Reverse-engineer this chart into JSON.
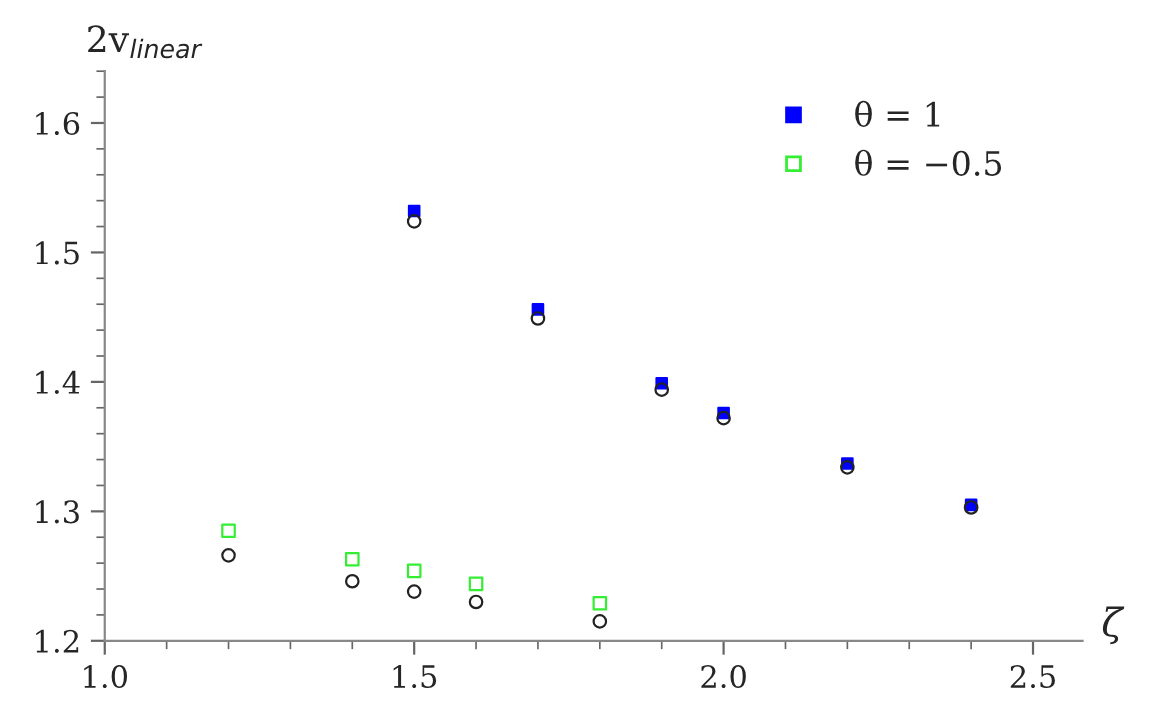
{
  "chart_data": {
    "type": "scatter",
    "xlabel": "ζ",
    "ylabel": "2v$_{linear}$",
    "xlim": [
      1.0,
      2.58
    ],
    "ylim": [
      1.2,
      1.64
    ],
    "xticks": [
      {
        "value": 1.0,
        "label": "1.0"
      },
      1.5,
      {
        "value": 2.0,
        "label": "2.0"
      },
      2.5
    ],
    "yticks": [
      1.2,
      1.3,
      1.4,
      1.5,
      1.6
    ],
    "grid": false,
    "legend": "top right",
    "series": [
      {
        "name": "θ = 1",
        "color": "#0000ff",
        "marker": "square",
        "x": [
          1.5,
          1.7,
          1.9,
          2.0,
          2.2,
          2.4
        ],
        "values": [
          1.532,
          1.456,
          1.399,
          1.376,
          1.337,
          1.305
        ]
      },
      {
        "name": "θ = −0.5",
        "color": "#33ee33",
        "marker": "square",
        "x": [
          1.2,
          1.4,
          1.5,
          1.6,
          1.8
        ],
        "values": [
          1.285,
          1.263,
          1.254,
          1.244,
          1.229
        ]
      },
      {
        "color": "#222222",
        "marker": "circle",
        "x": [
          1.2,
          1.4,
          1.5,
          1.5,
          1.6,
          1.7,
          1.8,
          1.9,
          2.0,
          2.2,
          2.4
        ],
        "values": [
          1.266,
          1.246,
          1.238,
          1.524,
          1.23,
          1.449,
          1.215,
          1.394,
          1.372,
          1.334,
          1.303
        ]
      }
    ]
  }
}
